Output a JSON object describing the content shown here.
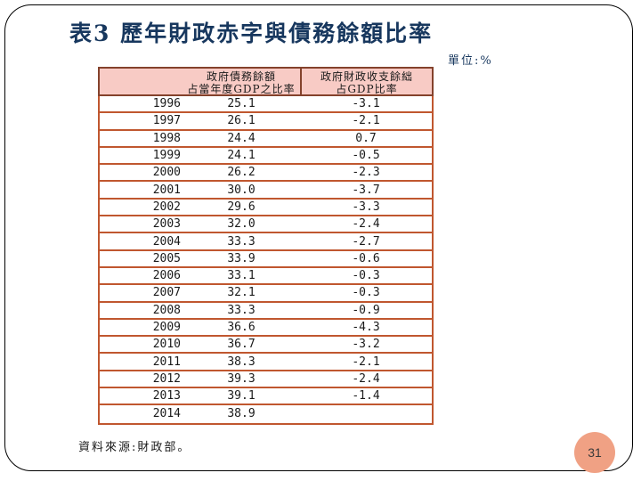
{
  "slide": {
    "title": "表3 歷年財政赤字與債務餘額比率",
    "unit_label": "單位:%",
    "source_note": "資料來源:財政部。",
    "page_number": "31"
  },
  "table": {
    "header": {
      "year_label": "",
      "debt_line1": "政府債務餘額",
      "debt_line2": "占當年度GDP之比率",
      "balance_line1": "政府財政收支餘絀",
      "balance_line2": "占GDP比率"
    },
    "rows": [
      {
        "year": "1996",
        "debt": "25.1",
        "balance": "-3.1"
      },
      {
        "year": "1997",
        "debt": "26.1",
        "balance": "-2.1"
      },
      {
        "year": "1998",
        "debt": "24.4",
        "balance": "0.7"
      },
      {
        "year": "1999",
        "debt": "24.1",
        "balance": "-0.5"
      },
      {
        "year": "2000",
        "debt": "26.2",
        "balance": "-2.3"
      },
      {
        "year": "2001",
        "debt": "30.0",
        "balance": "-3.7"
      },
      {
        "year": "2002",
        "debt": "29.6",
        "balance": "-3.3"
      },
      {
        "year": "2003",
        "debt": "32.0",
        "balance": "-2.4"
      },
      {
        "year": "2004",
        "debt": "33.3",
        "balance": "-2.7"
      },
      {
        "year": "2005",
        "debt": "33.9",
        "balance": "-0.6"
      },
      {
        "year": "2006",
        "debt": "33.1",
        "balance": "-0.3"
      },
      {
        "year": "2007",
        "debt": "32.1",
        "balance": "-0.3"
      },
      {
        "year": "2008",
        "debt": "33.3",
        "balance": "-0.9"
      },
      {
        "year": "2009",
        "debt": "36.6",
        "balance": "-4.3"
      },
      {
        "year": "2010",
        "debt": "36.7",
        "balance": "-3.2"
      },
      {
        "year": "2011",
        "debt": "38.3",
        "balance": "-2.1"
      },
      {
        "year": "2012",
        "debt": "39.3",
        "balance": "-2.4"
      },
      {
        "year": "2013",
        "debt": "39.1",
        "balance": "-1.4"
      },
      {
        "year": "2014",
        "debt": "38.9",
        "balance": ""
      }
    ]
  },
  "colors": {
    "title_navy": "#17375E",
    "header_pink": "#F8CBC5",
    "header_border": "#84422C",
    "row_border": "#C0572F",
    "table_text": "#1a1a1a",
    "page_badge": "#F0A184",
    "slide_border": "#000000"
  }
}
